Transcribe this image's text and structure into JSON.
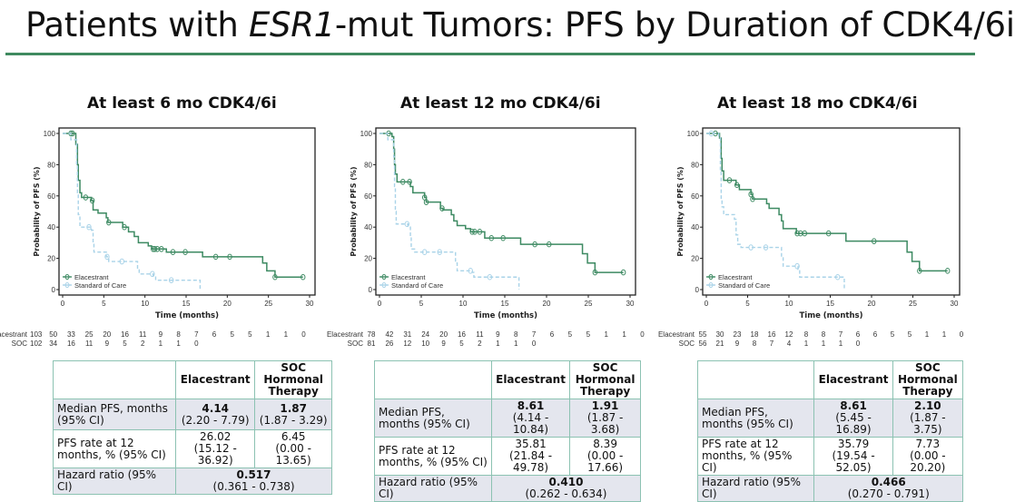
{
  "title": {
    "pre": "Patients with ",
    "italic": "ESR1",
    "post": "-mut Tumors: PFS by Duration of CDK4/6i"
  },
  "colors": {
    "elacestrant": "#3d8a62",
    "soc": "#a9d3e8",
    "rule": "#3f8a5f",
    "table_border": "#8cc2b2"
  },
  "chart_data": [
    {
      "type": "line",
      "title": "At least 6 mo CDK4/6i",
      "xlabel": "Time (months)",
      "ylabel": "Probability of PFS (%)",
      "xlim": [
        0,
        30
      ],
      "ylim": [
        0,
        100
      ],
      "xticks": [
        "0",
        "5",
        "10",
        "15",
        "20",
        "25",
        "30"
      ],
      "yticks": [
        "0",
        "20",
        "40",
        "60",
        "80",
        "100"
      ],
      "legend": [
        "Elacestrant",
        "Standard of Care"
      ],
      "legend_position": "bottom-left",
      "series": [
        {
          "name": "Elacestrant",
          "style": "solid",
          "steps": [
            [
              0,
              100
            ],
            [
              1.4,
              100
            ],
            [
              1.6,
              93
            ],
            [
              1.8,
              80
            ],
            [
              1.9,
              70
            ],
            [
              2.1,
              62
            ],
            [
              2.3,
              59
            ],
            [
              3.5,
              57
            ],
            [
              3.7,
              51
            ],
            [
              4.3,
              49
            ],
            [
              5.3,
              46
            ],
            [
              5.5,
              43
            ],
            [
              7.3,
              40
            ],
            [
              8.0,
              37
            ],
            [
              8.7,
              34
            ],
            [
              9.2,
              30
            ],
            [
              10.4,
              28
            ],
            [
              10.8,
              26
            ],
            [
              12.6,
              24
            ],
            [
              17.0,
              21
            ],
            [
              24.3,
              17
            ],
            [
              24.8,
              12
            ],
            [
              25.8,
              8
            ],
            [
              29.2,
              8
            ]
          ],
          "censored": [
            1.0,
            1.2,
            2.8,
            3.6,
            5.6,
            7.5,
            11.0,
            11.2,
            11.5,
            12.0,
            13.4,
            14.9,
            18.6,
            20.3,
            25.8,
            29.2
          ]
        },
        {
          "name": "Standard of Care",
          "style": "dashed",
          "steps": [
            [
              0,
              100
            ],
            [
              1.0,
              96
            ],
            [
              1.7,
              80
            ],
            [
              1.8,
              62
            ],
            [
              1.9,
              48
            ],
            [
              2.1,
              40
            ],
            [
              3.5,
              38
            ],
            [
              3.7,
              30
            ],
            [
              3.8,
              24
            ],
            [
              5.3,
              21
            ],
            [
              5.6,
              18
            ],
            [
              9.1,
              13
            ],
            [
              9.3,
              10
            ],
            [
              11.0,
              8
            ],
            [
              11.3,
              6
            ],
            [
              16.7,
              6
            ],
            [
              16.7,
              0
            ]
          ],
          "censored": [
            3.2,
            5.4,
            7.2,
            10.9,
            13.2
          ]
        }
      ],
      "at_risk": {
        "times": [
          0,
          2,
          4,
          6,
          8,
          10,
          12,
          14,
          16,
          18,
          20,
          22,
          24,
          26,
          28,
          30
        ],
        "rows": [
          {
            "label": "Elacestrant",
            "values": [
              "103",
              "50",
              "33",
              "25",
              "20",
              "16",
              "11",
              "9",
              "8",
              "7",
              "6",
              "5",
              "5",
              "1",
              "1",
              "0"
            ]
          },
          {
            "label": "SOC",
            "values": [
              "102",
              "34",
              "16",
              "11",
              "9",
              "5",
              "2",
              "1",
              "1",
              "0"
            ]
          }
        ]
      }
    },
    {
      "type": "line",
      "title": "At least 12 mo CDK4/6i",
      "xlabel": "Time (months)",
      "ylabel": "Probability of PFS (%)",
      "xlim": [
        0,
        30
      ],
      "ylim": [
        0,
        100
      ],
      "xticks": [
        "0",
        "5",
        "10",
        "15",
        "20",
        "25",
        "30"
      ],
      "yticks": [
        "0",
        "20",
        "40",
        "60",
        "80",
        "100"
      ],
      "legend": [
        "Elacestrant",
        "Standard of Care"
      ],
      "legend_position": "bottom-left",
      "series": [
        {
          "name": "Elacestrant",
          "style": "solid",
          "steps": [
            [
              0,
              100
            ],
            [
              1.5,
              98
            ],
            [
              1.7,
              90
            ],
            [
              1.8,
              80
            ],
            [
              1.9,
              74
            ],
            [
              2.1,
              69
            ],
            [
              3.7,
              66
            ],
            [
              4.0,
              62
            ],
            [
              5.4,
              59
            ],
            [
              5.6,
              56
            ],
            [
              7.3,
              52
            ],
            [
              7.6,
              51
            ],
            [
              8.6,
              48
            ],
            [
              8.9,
              44
            ],
            [
              9.3,
              41
            ],
            [
              10.3,
              39
            ],
            [
              10.9,
              37
            ],
            [
              12.6,
              33
            ],
            [
              16.9,
              29
            ],
            [
              24.3,
              23
            ],
            [
              24.9,
              17
            ],
            [
              25.8,
              11
            ],
            [
              29.2,
              11
            ]
          ],
          "censored": [
            1.1,
            2.8,
            3.6,
            5.4,
            5.6,
            7.5,
            11.1,
            11.4,
            12.0,
            13.4,
            14.8,
            18.6,
            20.3,
            25.8,
            29.2
          ]
        },
        {
          "name": "Standard of Care",
          "style": "dashed",
          "steps": [
            [
              0,
              100
            ],
            [
              1.0,
              96
            ],
            [
              1.7,
              85
            ],
            [
              1.8,
              66
            ],
            [
              1.9,
              50
            ],
            [
              2.0,
              42
            ],
            [
              3.4,
              40
            ],
            [
              3.7,
              33
            ],
            [
              3.8,
              26
            ],
            [
              4.2,
              24
            ],
            [
              9.1,
              17
            ],
            [
              9.3,
              12
            ],
            [
              11.1,
              11
            ],
            [
              11.3,
              8
            ],
            [
              16.7,
              8
            ],
            [
              16.7,
              0
            ]
          ],
          "censored": [
            3.3,
            5.4,
            7.2,
            10.9,
            13.2
          ]
        }
      ],
      "at_risk": {
        "times": [
          0,
          2,
          4,
          6,
          8,
          10,
          12,
          14,
          16,
          18,
          20,
          22,
          24,
          26,
          28,
          30
        ],
        "rows": [
          {
            "label": "Elacestrant",
            "values": [
              "78",
              "42",
              "31",
              "24",
              "20",
              "16",
              "11",
              "9",
              "8",
              "7",
              "6",
              "5",
              "5",
              "1",
              "1",
              "0"
            ]
          },
          {
            "label": "SOC",
            "values": [
              "81",
              "26",
              "12",
              "10",
              "9",
              "5",
              "2",
              "1",
              "1",
              "0"
            ]
          }
        ]
      }
    },
    {
      "type": "line",
      "title": "At least 18 mo CDK4/6i",
      "xlabel": "Time (months)",
      "ylabel": "Probability of PFS (%)",
      "xlim": [
        0,
        30
      ],
      "ylim": [
        0,
        100
      ],
      "xticks": [
        "0",
        "5",
        "10",
        "15",
        "20",
        "25",
        "30"
      ],
      "yticks": [
        "0",
        "20",
        "40",
        "60",
        "80",
        "100"
      ],
      "legend": [
        "Elacestrant",
        "Standard of Care"
      ],
      "legend_position": "bottom-left",
      "series": [
        {
          "name": "Elacestrant",
          "style": "solid",
          "steps": [
            [
              0,
              100
            ],
            [
              1.6,
              97
            ],
            [
              1.8,
              84
            ],
            [
              1.9,
              76
            ],
            [
              2.1,
              70
            ],
            [
              3.6,
              67
            ],
            [
              4.0,
              64
            ],
            [
              5.4,
              61
            ],
            [
              5.6,
              58
            ],
            [
              7.3,
              55
            ],
            [
              7.6,
              52
            ],
            [
              8.8,
              48
            ],
            [
              9.1,
              44
            ],
            [
              9.3,
              39
            ],
            [
              10.9,
              36
            ],
            [
              16.9,
              31
            ],
            [
              24.3,
              24
            ],
            [
              24.9,
              18
            ],
            [
              25.8,
              12
            ],
            [
              29.2,
              12
            ]
          ],
          "censored": [
            1.1,
            2.8,
            3.7,
            5.4,
            5.6,
            11.0,
            11.4,
            11.9,
            14.8,
            20.3,
            25.8,
            29.2
          ]
        },
        {
          "name": "Standard of Care",
          "style": "dashed",
          "steps": [
            [
              0,
              100
            ],
            [
              1.5,
              98
            ],
            [
              1.7,
              75
            ],
            [
              1.8,
              58
            ],
            [
              1.9,
              53
            ],
            [
              2.1,
              48
            ],
            [
              3.4,
              45
            ],
            [
              3.6,
              35
            ],
            [
              3.8,
              29
            ],
            [
              4.2,
              27
            ],
            [
              9.1,
              21
            ],
            [
              9.3,
              15
            ],
            [
              11.1,
              13
            ],
            [
              11.3,
              8
            ],
            [
              16.7,
              8
            ],
            [
              16.7,
              0
            ]
          ],
          "censored": [
            0.6,
            5.4,
            7.2,
            11.0,
            15.9
          ]
        }
      ],
      "at_risk": {
        "times": [
          0,
          2,
          4,
          6,
          8,
          10,
          12,
          14,
          16,
          18,
          20,
          22,
          24,
          26,
          28,
          30
        ],
        "rows": [
          {
            "label": "Elacestrant",
            "values": [
              "55",
              "30",
              "23",
              "18",
              "16",
              "12",
              "8",
              "8",
              "7",
              "6",
              "6",
              "5",
              "5",
              "1",
              "1",
              "0"
            ]
          },
          {
            "label": "SOC",
            "values": [
              "56",
              "21",
              "9",
              "8",
              "7",
              "4",
              "1",
              "1",
              "1",
              "0"
            ]
          }
        ]
      }
    }
  ],
  "tables": [
    {
      "col_ela": "Elacestrant",
      "col_soc": "SOC Hormonal Therapy",
      "median_label": "Median PFS, months (95% CI)",
      "median_ela": "4.14",
      "median_ela_ci": "(2.20 - 7.79)",
      "median_soc": "1.87",
      "median_soc_ci": "(1.87 - 3.29)",
      "rate_label": "PFS rate at 12 months, % (95% CI)",
      "rate_ela": "26.02",
      "rate_ela_ci": "(15.12 - 36.92)",
      "rate_soc": "6.45",
      "rate_soc_ci": "(0.00 - 13.65)",
      "hr_label": "Hazard ratio (95% CI)",
      "hr": "0.517",
      "hr_ci": "(0.361 - 0.738)"
    },
    {
      "col_ela": "Elacestrant",
      "col_soc": "SOC Hormonal Therapy",
      "median_label": "Median PFS, months (95% CI)",
      "median_ela": "8.61",
      "median_ela_ci": "(4.14 - 10.84)",
      "median_soc": "1.91",
      "median_soc_ci": "(1.87 - 3.68)",
      "rate_label": "PFS rate at 12 months, % (95% CI)",
      "rate_ela": "35.81",
      "rate_ela_ci": "(21.84 - 49.78)",
      "rate_soc": "8.39",
      "rate_soc_ci": "(0.00 - 17.66)",
      "hr_label": "Hazard ratio (95% CI)",
      "hr": "0.410",
      "hr_ci": "(0.262 - 0.634)"
    },
    {
      "col_ela": "Elacestrant",
      "col_soc": "SOC Hormonal Therapy",
      "median_label": "Median PFS, months (95% CI)",
      "median_ela": "8.61",
      "median_ela_ci": "(5.45 - 16.89)",
      "median_soc": "2.10",
      "median_soc_ci": "(1.87 - 3.75)",
      "rate_label": "PFS rate at 12 months, % (95% CI)",
      "rate_ela": "35.79",
      "rate_ela_ci": "(19.54 - 52.05)",
      "rate_soc": "7.73",
      "rate_soc_ci": "(0.00 - 20.20)",
      "hr_label": "Hazard ratio (95% CI)",
      "hr": "0.466",
      "hr_ci": "(0.270 - 0.791)"
    }
  ]
}
